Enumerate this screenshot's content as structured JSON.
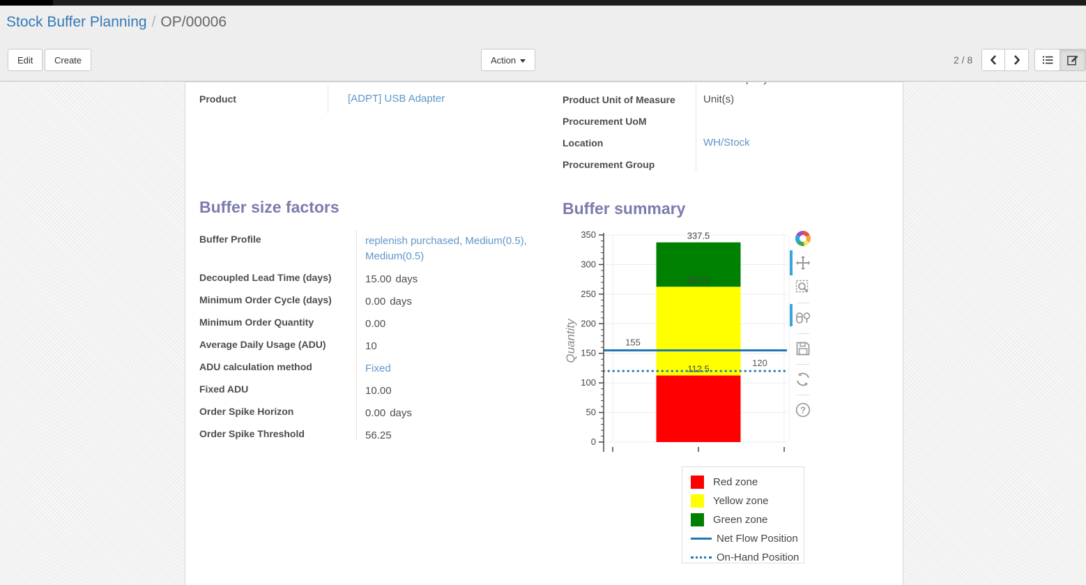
{
  "header": {
    "breadcrumb": {
      "parent": "Stock Buffer Planning",
      "separator": "/",
      "current": "OP/00006"
    },
    "buttons": {
      "edit": "Edit",
      "create": "Create",
      "action": "Action"
    },
    "pager": {
      "value": "2 / 8"
    },
    "icons": {
      "action_caret": "caret-down",
      "pager_prev": "chevron-left",
      "pager_next": "chevron-right",
      "view_list": "list-view",
      "view_form": "form-view-active"
    }
  },
  "form": {
    "clipped_top_value": "YourCompany",
    "left_fields": [
      {
        "label": "Product",
        "value": "[ADPT] USB Adapter",
        "link": true,
        "suffix": ""
      }
    ],
    "right_fields": [
      {
        "label": "Product Unit of Measure",
        "value": "Unit(s)",
        "link": false,
        "suffix": ""
      },
      {
        "label": "Procurement UoM",
        "value": "",
        "link": false,
        "suffix": ""
      },
      {
        "label": "Location",
        "value": "WH/Stock",
        "link": true,
        "suffix": ""
      },
      {
        "label": "Procurement Group",
        "value": "",
        "link": false,
        "suffix": ""
      }
    ],
    "factors": {
      "title": "Buffer size factors",
      "fields": [
        {
          "label": "Buffer Profile",
          "value": "replenish purchased, Medium(0.5), Medium(0.5)",
          "link": true,
          "suffix": ""
        },
        {
          "label": "Decoupled Lead Time (days)",
          "value": "15.00",
          "link": false,
          "suffix": "days"
        },
        {
          "label": "Minimum Order Cycle (days)",
          "value": "0.00",
          "link": false,
          "suffix": "days"
        },
        {
          "label": "Minimum Order Quantity",
          "value": "0.00",
          "link": false,
          "suffix": ""
        },
        {
          "label": "Average Daily Usage (ADU)",
          "value": "10",
          "link": false,
          "suffix": ""
        },
        {
          "label": "ADU calculation method",
          "value": "Fixed",
          "link": true,
          "suffix": ""
        },
        {
          "label": "Fixed ADU",
          "value": "10.00",
          "link": false,
          "suffix": ""
        },
        {
          "label": "Order Spike Horizon",
          "value": "0.00",
          "link": false,
          "suffix": "days"
        },
        {
          "label": "Order Spike Threshold",
          "value": "56.25",
          "link": false,
          "suffix": ""
        }
      ]
    },
    "summary": {
      "title": "Buffer summary"
    }
  },
  "chart_data": {
    "type": "bar",
    "title": "",
    "xlabel": "",
    "ylabel": "Quantity",
    "ylim": [
      0,
      350
    ],
    "ytick_step": 50,
    "ytick_minor": 10,
    "grid": true,
    "legend_position": "bottom-right",
    "zones": [
      {
        "name": "Red zone",
        "from": 0,
        "to": 112.5,
        "color": "#ff0000",
        "label": "112.5"
      },
      {
        "name": "Yellow zone",
        "from": 112.5,
        "to": 262.5,
        "color": "#ffff00",
        "label": "262.5"
      },
      {
        "name": "Green zone",
        "from": 262.5,
        "to": 337.5,
        "color": "#008000",
        "label": "337.5"
      }
    ],
    "lines": [
      {
        "name": "Net Flow Position",
        "value": 155,
        "style": "solid",
        "color": "#1f77b4",
        "label": "155",
        "label_side": "left"
      },
      {
        "name": "On-Hand Position",
        "value": 120,
        "style": "dotted",
        "color": "#1f77b4",
        "label": "120",
        "label_side": "right"
      }
    ],
    "modebar_icons": [
      "plotly-logo",
      "pan",
      "zoom-box",
      "compare-hover",
      "save-image",
      "reset-axes",
      "help"
    ]
  },
  "colors": {
    "accent_purple": "#7c7bad",
    "breadcrumb_link": "#337ab7",
    "value_link": "#5f95c9",
    "modebar_active": "#38a5dc"
  }
}
